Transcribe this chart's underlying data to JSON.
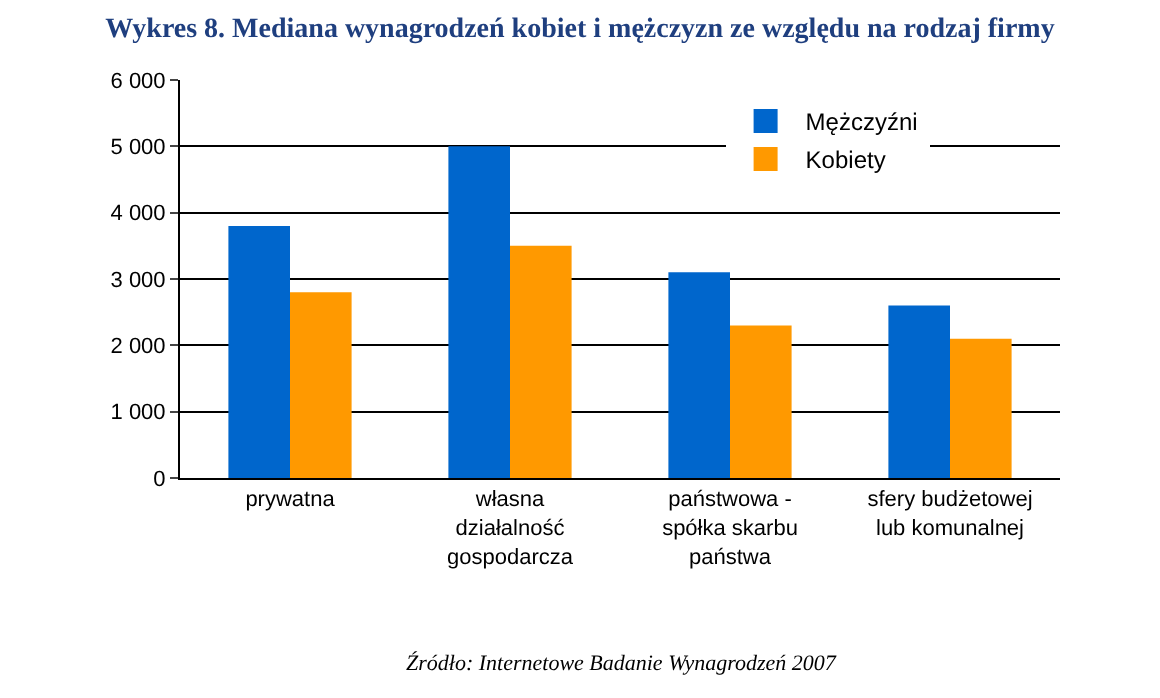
{
  "chart_data": {
    "type": "bar",
    "title": "Wykres 8. Mediana wynagrodzeń kobiet i mężczyzn ze względu na rodzaj firmy",
    "categories": [
      "prywatna",
      "własna\ndziałalność\ngospodarcza",
      "państwowa -\nspółka skarbu\npaństwa",
      "sfery budżetowej\nlub komunalnej"
    ],
    "series": [
      {
        "name": "Mężczyźni",
        "color": "#0066cc",
        "values": [
          3800,
          5000,
          3100,
          2600
        ]
      },
      {
        "name": "Kobiety",
        "color": "#ff9900",
        "values": [
          2800,
          3500,
          2300,
          2100
        ]
      }
    ],
    "ylim": [
      0,
      6000
    ],
    "yticks": [
      {
        "value": 0,
        "label": "0"
      },
      {
        "value": 1000,
        "label": "1 000"
      },
      {
        "value": 2000,
        "label": "2 000"
      },
      {
        "value": 3000,
        "label": "3 000"
      },
      {
        "value": 4000,
        "label": "4 000"
      },
      {
        "value": 5000,
        "label": "5 000"
      },
      {
        "value": 6000,
        "label": "6 000"
      }
    ],
    "grid": "y",
    "legend": "top right",
    "annotations": [
      "Źródło: Internetowe Badanie Wynagrodzeń 2007"
    ]
  }
}
